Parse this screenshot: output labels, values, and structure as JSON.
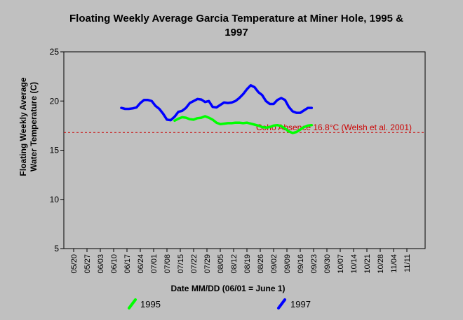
{
  "chart_data": {
    "type": "line",
    "title_line1": "Floating Weekly Average Garcia Temperature at Miner Hole, 1995 &",
    "title_line2": "1997",
    "xlabel": "Date MM/DD (06/01 = June 1)",
    "ylabel_line1": "Floating Weekly Average",
    "ylabel_line2": "Water Temperature (C)",
    "ylim": [
      5,
      25
    ],
    "yticks": [
      5,
      10,
      15,
      20,
      25
    ],
    "xticks": [
      "05/20",
      "05/27",
      "06/03",
      "06/10",
      "06/17",
      "06/24",
      "07/01",
      "07/08",
      "07/15",
      "07/22",
      "07/29",
      "08/05",
      "08/12",
      "08/19",
      "08/26",
      "09/02",
      "09/09",
      "09/16",
      "09/23",
      "09/30",
      "10/07",
      "10/14",
      "10/21",
      "10/28",
      "11/04",
      "11/11"
    ],
    "grid": false,
    "legend_placement": "bottom",
    "threshold": {
      "label": "Coho Absence 16.8°C (Welsh et al. 2001)",
      "value": 16.8,
      "color": "#cc0000"
    },
    "series": [
      {
        "name": "1995",
        "color": "#00ff00",
        "x": [
          "07/12",
          "07/14",
          "07/16",
          "07/18",
          "07/20",
          "07/22",
          "07/24",
          "07/26",
          "07/28",
          "07/30",
          "08/01",
          "08/03",
          "08/05",
          "08/07",
          "08/09",
          "08/11",
          "08/13",
          "08/15",
          "08/17",
          "08/19",
          "08/21",
          "08/23",
          "08/25",
          "08/27",
          "08/29",
          "08/31",
          "09/02",
          "09/04",
          "09/06",
          "09/08",
          "09/10",
          "09/12",
          "09/14",
          "09/16",
          "09/18",
          "09/20",
          "09/22"
        ],
        "y": [
          18.0,
          18.2,
          18.35,
          18.3,
          18.15,
          18.1,
          18.25,
          18.3,
          18.45,
          18.3,
          18.1,
          17.8,
          17.65,
          17.7,
          17.75,
          17.75,
          17.8,
          17.8,
          17.75,
          17.8,
          17.7,
          17.6,
          17.5,
          17.35,
          17.3,
          17.35,
          17.5,
          17.55,
          17.45,
          17.2,
          16.9,
          16.75,
          16.85,
          17.1,
          17.35,
          17.5,
          17.55
        ]
      },
      {
        "name": "1997",
        "color": "#0000ff",
        "x": [
          "06/14",
          "06/16",
          "06/18",
          "06/20",
          "06/22",
          "06/24",
          "06/26",
          "06/28",
          "06/30",
          "07/02",
          "07/04",
          "07/06",
          "07/08",
          "07/10",
          "07/12",
          "07/14",
          "07/16",
          "07/18",
          "07/20",
          "07/22",
          "07/24",
          "07/26",
          "07/28",
          "07/30",
          "08/01",
          "08/03",
          "08/05",
          "08/07",
          "08/09",
          "08/11",
          "08/13",
          "08/15",
          "08/17",
          "08/19",
          "08/21",
          "08/23",
          "08/25",
          "08/27",
          "08/29",
          "08/31",
          "09/02",
          "09/04",
          "09/06",
          "09/08",
          "09/10",
          "09/12",
          "09/14",
          "09/16",
          "09/18",
          "09/20",
          "09/22"
        ],
        "y": [
          19.3,
          19.2,
          19.2,
          19.25,
          19.35,
          19.8,
          20.1,
          20.1,
          20.0,
          19.5,
          19.2,
          18.7,
          18.1,
          18.05,
          18.4,
          18.9,
          19.0,
          19.3,
          19.8,
          20.0,
          20.2,
          20.15,
          19.9,
          20.0,
          19.4,
          19.35,
          19.6,
          19.85,
          19.8,
          19.85,
          20.0,
          20.3,
          20.7,
          21.2,
          21.6,
          21.4,
          20.9,
          20.6,
          20.0,
          19.7,
          19.7,
          20.1,
          20.3,
          20.1,
          19.4,
          18.95,
          18.8,
          18.8,
          19.05,
          19.3,
          19.3
        ]
      }
    ]
  }
}
